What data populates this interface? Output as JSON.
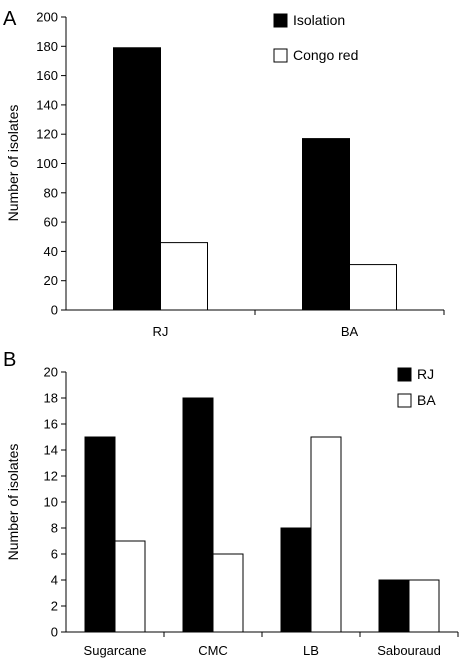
{
  "chart_data": [
    {
      "panel_label": "A",
      "type": "bar",
      "ylabel": "Number of isolates",
      "ylim": [
        0,
        200
      ],
      "yticks": [
        0,
        20,
        40,
        60,
        80,
        100,
        120,
        140,
        160,
        180,
        200
      ],
      "categories": [
        "RJ",
        "BA"
      ],
      "series": [
        {
          "name": "Isolation",
          "color": "#000000",
          "values": [
            179,
            117
          ]
        },
        {
          "name": "Congo red",
          "color": "#ffffff",
          "values": [
            46,
            31
          ]
        }
      ],
      "legend_position": "top-right"
    },
    {
      "panel_label": "B",
      "type": "bar",
      "ylabel": "Number of isolates",
      "ylim": [
        0,
        20
      ],
      "yticks": [
        0,
        2,
        4,
        6,
        8,
        10,
        12,
        14,
        16,
        18,
        20
      ],
      "categories": [
        "Sugarcane",
        "CMC",
        "LB",
        "Sabouraud"
      ],
      "series": [
        {
          "name": "RJ",
          "color": "#000000",
          "values": [
            15,
            18,
            8,
            4
          ]
        },
        {
          "name": "BA",
          "color": "#ffffff",
          "values": [
            7,
            6,
            15,
            4
          ]
        }
      ],
      "legend_position": "top-right"
    }
  ]
}
